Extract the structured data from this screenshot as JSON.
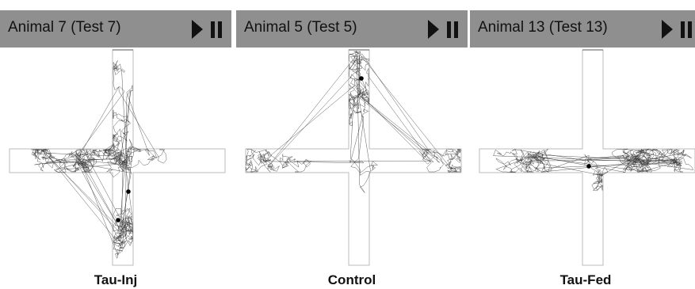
{
  "panels": [
    {
      "title": "Animal 7 (Test 7)",
      "label": "Tau-Inj"
    },
    {
      "title": "Animal 5 (Test 5)",
      "label": "Control"
    },
    {
      "title": "Animal 13 (Test 13)",
      "label": "Tau-Fed"
    }
  ]
}
